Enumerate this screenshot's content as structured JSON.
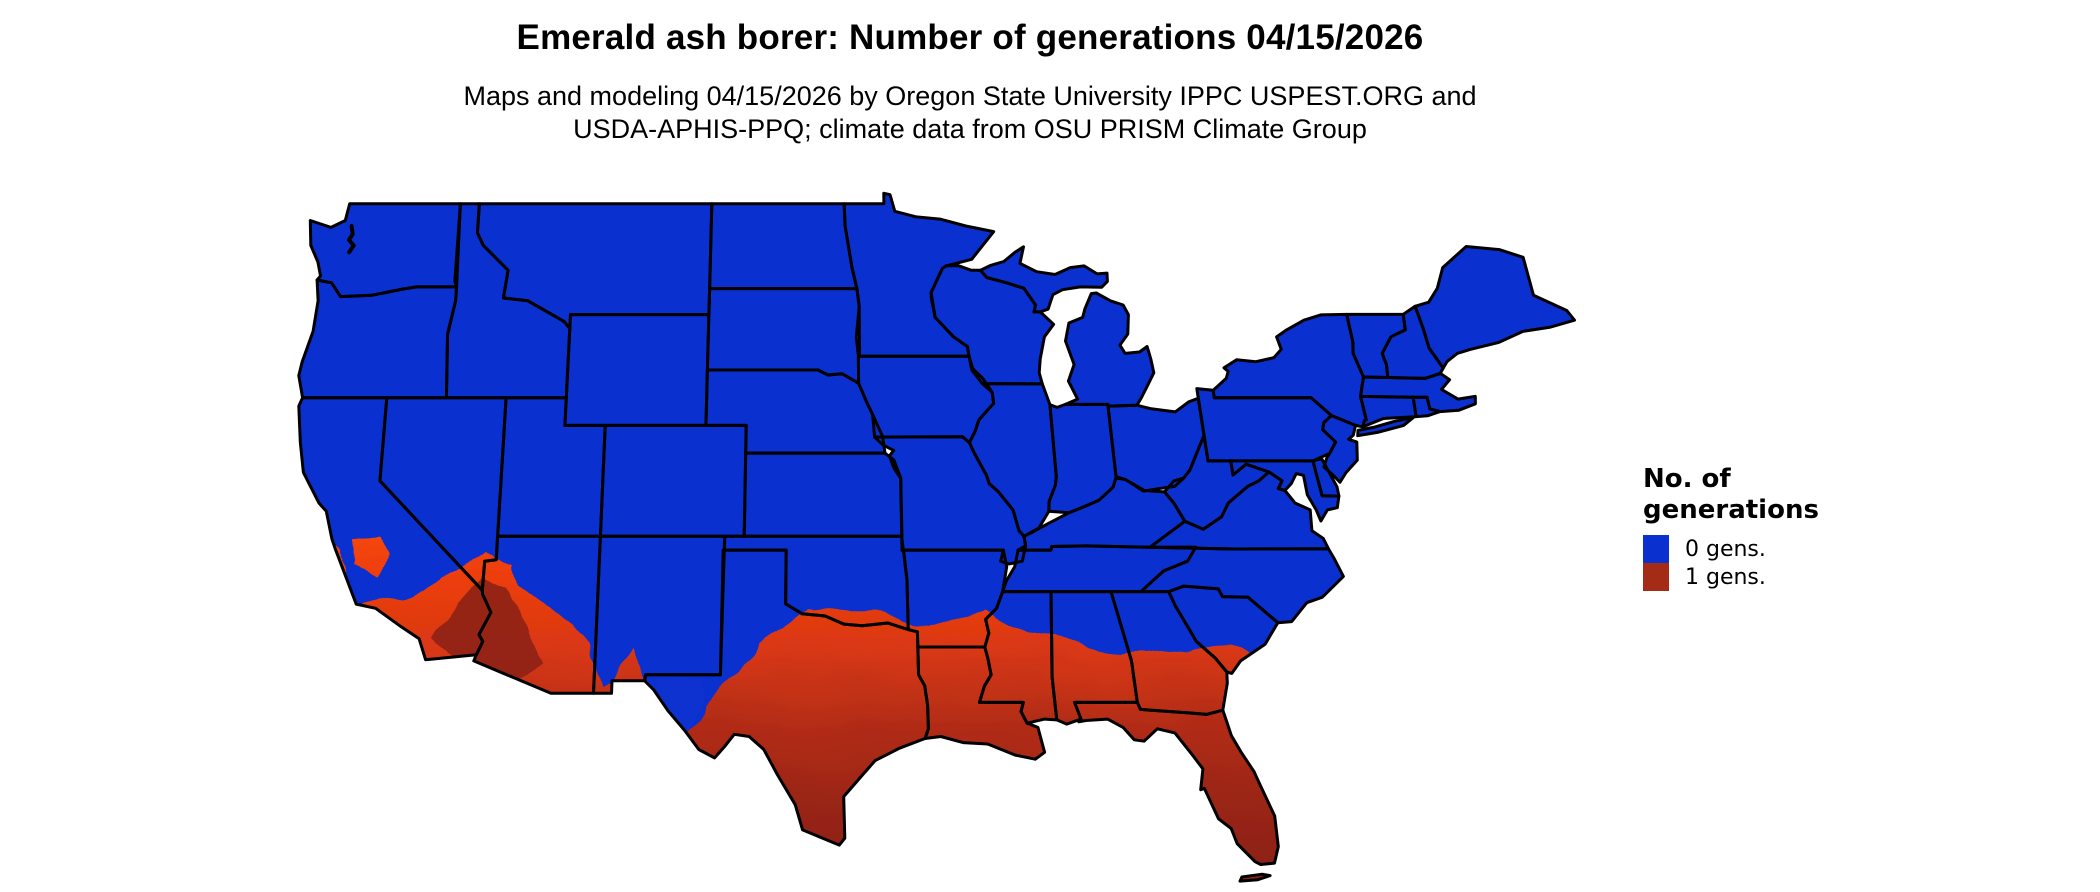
{
  "title": "Emerald ash borer: Number of generations 04/15/2026",
  "subtitle": {
    "line1": "Maps and modeling 04/15/2026 by Oregon State University IPPC USPEST.ORG and",
    "line2": "USDA-APHIS-PPQ; climate data from OSU PRISM Climate Group"
  },
  "legend": {
    "title_line1": "No. of",
    "title_line2": "generations",
    "items": [
      {
        "label": "0 gens.",
        "color": "#0a31d0"
      },
      {
        "label": "1 gens.",
        "color": "#a42c17"
      }
    ]
  },
  "map": {
    "region": "Contiguous United States",
    "colors": {
      "zero_gen_blue": "#0a31d0",
      "fringe_orange": "#fb4c07",
      "orange_red": "#ee3e0a",
      "mid_red": "#c53118",
      "dark_red": "#8b2013",
      "desert_dark_red": "#8e2214",
      "state_border": "#000000",
      "background": "#ffffff"
    }
  },
  "chart_data": {
    "type": "choropleth_map",
    "title": "Emerald ash borer: Number of generations 04/15/2026",
    "region": "Contiguous United States",
    "legend_title": "No. of generations",
    "classes": [
      {
        "label": "0 gens.",
        "color": "#0a31d0",
        "extent": "Northern and central US: Pacific Northwest, Rockies, Plains, Midwest, Northeast, Appalachians"
      },
      {
        "label": "1 gens.",
        "color": "#a42c17",
        "extent": "Southern tier: southern California coast and deserts, southern Arizona, southernmost New Mexico, central and southern Texas, southern Arkansas, Gulf Coast, southern Mississippi/Alabama/Georgia, coastal South Carolina, all of Florida"
      }
    ]
  }
}
